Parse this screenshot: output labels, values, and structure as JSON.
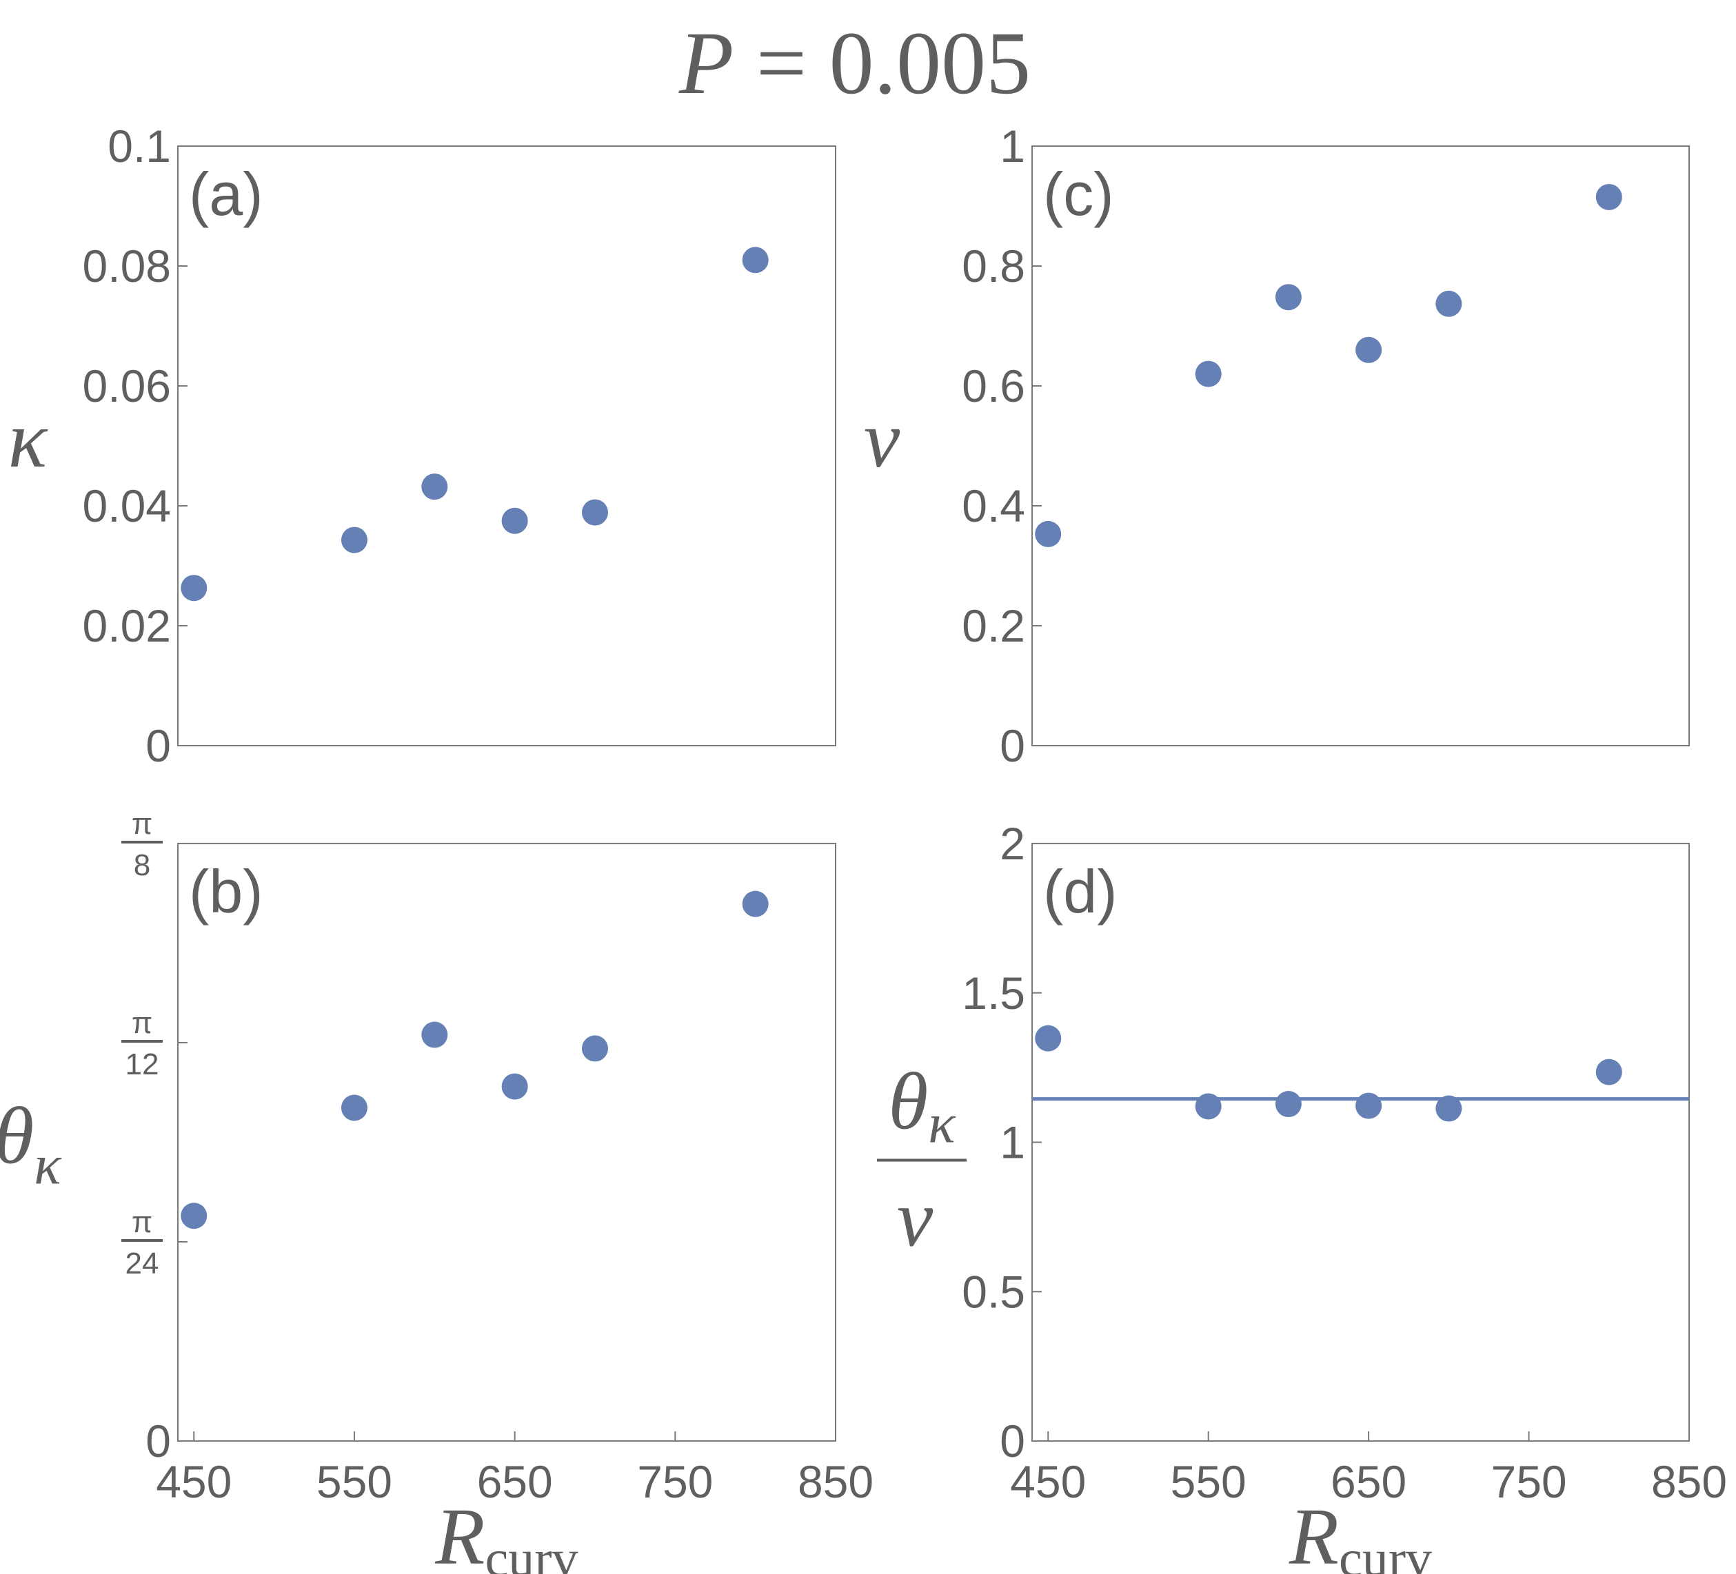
{
  "title": {
    "var": "P",
    "rest": " = 0.005"
  },
  "chart_data": [
    {
      "id": "a",
      "type": "scatter",
      "panel_label": "(a)",
      "ylabel": "κ",
      "xlim": [
        440,
        850
      ],
      "ylim": [
        0,
        0.1
      ],
      "xticks": [],
      "yticks": [
        {
          "v": 0,
          "label": "0"
        },
        {
          "v": 0.02,
          "label": "0.02"
        },
        {
          "v": 0.04,
          "label": "0.04"
        },
        {
          "v": 0.06,
          "label": "0.06"
        },
        {
          "v": 0.08,
          "label": "0.08"
        },
        {
          "v": 0.1,
          "label": "0.1"
        }
      ],
      "x": [
        450,
        550,
        600,
        650,
        700,
        800
      ],
      "y": [
        0.0263,
        0.0343,
        0.0432,
        0.0375,
        0.0389,
        0.081
      ]
    },
    {
      "id": "b",
      "type": "scatter",
      "panel_label": "(b)",
      "ylabel": "θ",
      "ylabel_sub": "κ",
      "xlabel": "R",
      "xlabel_sub": "curv",
      "xlim": [
        440,
        850
      ],
      "ylim": [
        0,
        0.3927
      ],
      "xticks": [
        {
          "v": 450,
          "label": "450"
        },
        {
          "v": 550,
          "label": "550"
        },
        {
          "v": 650,
          "label": "650"
        },
        {
          "v": 750,
          "label": "750"
        },
        {
          "v": 850,
          "label": "850"
        }
      ],
      "yticks": [
        {
          "v": 0,
          "label": "0"
        },
        {
          "v": 0.1309,
          "num": "π",
          "den": "24"
        },
        {
          "v": 0.2618,
          "num": "π",
          "den": "12"
        },
        {
          "v": 0.3927,
          "num": "π",
          "den": "8"
        }
      ],
      "x": [
        450,
        550,
        600,
        650,
        700,
        800
      ],
      "y": [
        0.148,
        0.219,
        0.267,
        0.233,
        0.258,
        0.353
      ]
    },
    {
      "id": "c",
      "type": "scatter",
      "panel_label": "(c)",
      "ylabel": "ν",
      "xlim": [
        440,
        850
      ],
      "ylim": [
        0,
        1
      ],
      "xticks": [],
      "yticks": [
        {
          "v": 0,
          "label": "0"
        },
        {
          "v": 0.2,
          "label": "0.2"
        },
        {
          "v": 0.4,
          "label": "0.4"
        },
        {
          "v": 0.6,
          "label": "0.6"
        },
        {
          "v": 0.8,
          "label": "0.8"
        },
        {
          "v": 1,
          "label": "1"
        }
      ],
      "x": [
        450,
        550,
        600,
        650,
        700,
        800
      ],
      "y": [
        0.353,
        0.62,
        0.748,
        0.66,
        0.737,
        0.915
      ]
    },
    {
      "id": "d",
      "type": "scatter",
      "panel_label": "(d)",
      "ylabel": "θ",
      "ylabel_sub": "κ",
      "ylabel_den": "ν",
      "xlabel": "R",
      "xlabel_sub": "curv",
      "xlim": [
        440,
        850
      ],
      "ylim": [
        0,
        2
      ],
      "xticks": [
        {
          "v": 450,
          "label": "450"
        },
        {
          "v": 550,
          "label": "550"
        },
        {
          "v": 650,
          "label": "650"
        },
        {
          "v": 750,
          "label": "750"
        },
        {
          "v": 850,
          "label": "850"
        }
      ],
      "yticks": [
        {
          "v": 0,
          "label": "0"
        },
        {
          "v": 0.5,
          "label": "0.5"
        },
        {
          "v": 1,
          "label": "1"
        },
        {
          "v": 1.5,
          "label": "1.5"
        },
        {
          "v": 2,
          "label": "2"
        }
      ],
      "x": [
        450,
        550,
        600,
        650,
        700,
        800
      ],
      "y": [
        1.348,
        1.12,
        1.128,
        1.122,
        1.113,
        1.235
      ],
      "hline": 1.145
    }
  ]
}
